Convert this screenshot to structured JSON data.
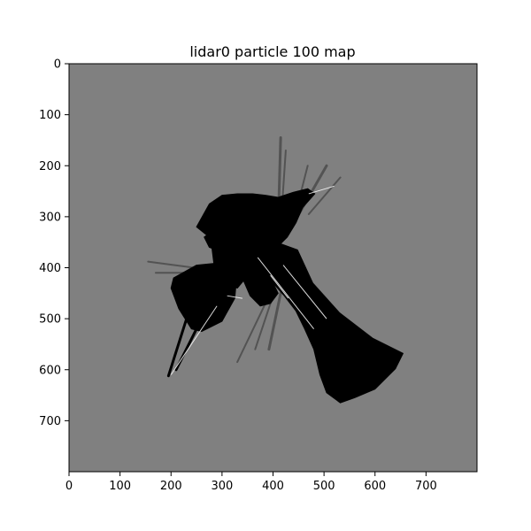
{
  "chart_data": {
    "type": "heatmap",
    "title": "lidar0 particle 100 map",
    "xlabel": "",
    "ylabel": "",
    "xlim": [
      0,
      800
    ],
    "ylim": [
      800,
      0
    ],
    "x_ticks": [
      0,
      100,
      200,
      300,
      400,
      500,
      600,
      700
    ],
    "y_ticks": [
      0,
      100,
      200,
      300,
      400,
      500,
      600,
      700
    ],
    "x_tick_labels": [
      "0",
      "100",
      "200",
      "300",
      "400",
      "500",
      "600",
      "700"
    ],
    "y_tick_labels": [
      "0",
      "100",
      "200",
      "300",
      "400",
      "500",
      "600",
      "700"
    ],
    "colormap": "gray",
    "colors": {
      "unknown": "#808080",
      "occupied": "#000000",
      "free": "#ffffff",
      "ray_mid": "#404040"
    },
    "grid": false,
    "legend": "none",
    "regions": {
      "occupied_blobs": [
        [
          [
            205,
            420
          ],
          [
            250,
            395
          ],
          [
            300,
            390
          ],
          [
            330,
            405
          ],
          [
            325,
            460
          ],
          [
            300,
            505
          ],
          [
            260,
            525
          ],
          [
            240,
            520
          ],
          [
            215,
            480
          ],
          [
            200,
            440
          ]
        ],
        [
          [
            300,
            325
          ],
          [
            335,
            340
          ],
          [
            360,
            360
          ],
          [
            355,
            410
          ],
          [
            330,
            440
          ],
          [
            300,
            430
          ],
          [
            285,
            400
          ],
          [
            280,
            360
          ]
        ],
        [
          [
            265,
            340
          ],
          [
            300,
            315
          ],
          [
            335,
            300
          ],
          [
            370,
            300
          ],
          [
            395,
            315
          ],
          [
            405,
            345
          ],
          [
            395,
            380
          ],
          [
            370,
            400
          ],
          [
            345,
            395
          ],
          [
            330,
            375
          ],
          [
            300,
            370
          ],
          [
            275,
            360
          ]
        ],
        [
          [
            250,
            320
          ],
          [
            275,
            275
          ],
          [
            300,
            258
          ],
          [
            330,
            255
          ],
          [
            360,
            255
          ],
          [
            385,
            258
          ],
          [
            410,
            262
          ],
          [
            440,
            252
          ],
          [
            468,
            245
          ],
          [
            482,
            255
          ],
          [
            458,
            282
          ],
          [
            445,
            312
          ],
          [
            428,
            340
          ],
          [
            408,
            360
          ],
          [
            385,
            360
          ],
          [
            360,
            342
          ],
          [
            330,
            330
          ],
          [
            300,
            342
          ],
          [
            275,
            340
          ]
        ],
        [
          [
            375,
            380
          ],
          [
            412,
            352
          ],
          [
            448,
            365
          ],
          [
            478,
            430
          ],
          [
            530,
            488
          ],
          [
            595,
            538
          ],
          [
            655,
            568
          ],
          [
            640,
            598
          ],
          [
            600,
            638
          ],
          [
            560,
            655
          ],
          [
            532,
            665
          ],
          [
            505,
            645
          ],
          [
            492,
            610
          ],
          [
            480,
            560
          ],
          [
            462,
            520
          ],
          [
            445,
            485
          ],
          [
            422,
            455
          ],
          [
            400,
            430
          ],
          [
            382,
            405
          ]
        ],
        [
          [
            345,
            395
          ],
          [
            375,
            385
          ],
          [
            395,
            420
          ],
          [
            410,
            450
          ],
          [
            395,
            470
          ],
          [
            375,
            475
          ],
          [
            355,
            455
          ],
          [
            342,
            425
          ]
        ]
      ],
      "ray_lines": [
        {
          "from": [
            410,
            320
          ],
          "to": [
            415,
            145
          ]
        },
        {
          "from": [
            415,
            320
          ],
          "to": [
            425,
            170
          ]
        },
        {
          "from": [
            440,
            310
          ],
          "to": [
            468,
            200
          ]
        },
        {
          "from": [
            445,
            305
          ],
          "to": [
            505,
            200
          ]
        },
        {
          "from": [
            470,
            295
          ],
          "to": [
            532,
            223
          ]
        },
        {
          "from": [
            240,
            470
          ],
          "to": [
            195,
            612
          ]
        },
        {
          "from": [
            275,
            470
          ],
          "to": [
            210,
            600
          ]
        },
        {
          "from": [
            390,
            460
          ],
          "to": [
            330,
            585
          ]
        },
        {
          "from": [
            400,
            455
          ],
          "to": [
            365,
            560
          ]
        },
        {
          "from": [
            415,
            450
          ],
          "to": [
            392,
            560
          ]
        },
        {
          "from": [
            245,
            400
          ],
          "to": [
            155,
            388
          ]
        },
        {
          "from": [
            248,
            410
          ],
          "to": [
            170,
            410
          ]
        }
      ],
      "free_lines": [
        {
          "from": [
            200,
            610
          ],
          "to": [
            290,
            475
          ]
        },
        {
          "from": [
            420,
            395
          ],
          "to": [
            505,
            500
          ]
        },
        {
          "from": [
            370,
            380
          ],
          "to": [
            480,
            520
          ]
        },
        {
          "from": [
            470,
            255
          ],
          "to": [
            520,
            240
          ]
        },
        {
          "from": [
            310,
            455
          ],
          "to": [
            340,
            460
          ]
        },
        {
          "from": [
            395,
            415
          ],
          "to": [
            430,
            460
          ]
        }
      ]
    }
  }
}
